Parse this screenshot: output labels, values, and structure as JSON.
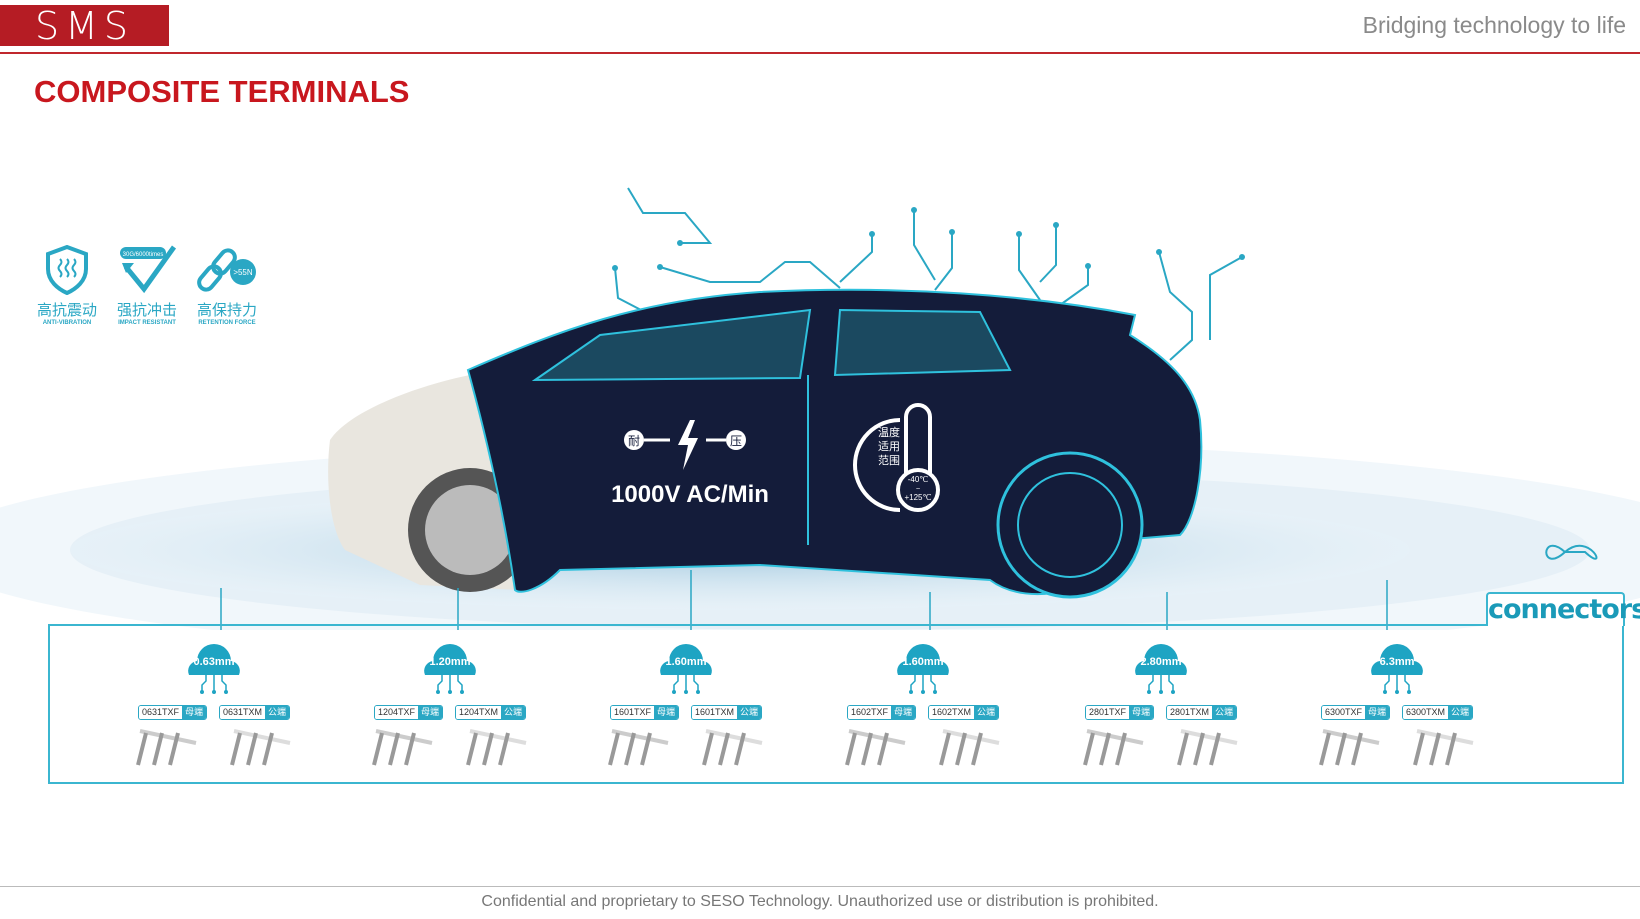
{
  "header": {
    "logo": "SMS",
    "tagline": "Bridging technology to life"
  },
  "title": "COMPOSITE TERMINALS",
  "features": [
    {
      "cn": "高抗震动",
      "en": "ANTI-VIBRATION",
      "icon": "shield-vibration-icon"
    },
    {
      "cn": "强抗冲击",
      "en": "IMPACT RESISTANT",
      "badge": "30G/6000times",
      "icon": "impact-check-icon"
    },
    {
      "cn": "高保持力",
      "en": "RETENTION FORCE",
      "badge": ">55N",
      "icon": "chain-link-icon"
    }
  ],
  "car": {
    "voltage_left": "耐",
    "voltage_right": "压",
    "voltage_text": "1000V AC/Min",
    "temp_lines": [
      "温度",
      "适用",
      "范围"
    ],
    "temp_low": "-40℃",
    "temp_sep": "~",
    "temp_high": "+125℃"
  },
  "connectors_label": "connectors",
  "accent": "#2aa7c4",
  "brand": "#c8171e",
  "groups": [
    {
      "size": "0.63mm",
      "f": "0631TXF",
      "m": "0631TXM"
    },
    {
      "size": "1.20mm",
      "f": "1204TXF",
      "m": "1204TXM"
    },
    {
      "size": "1.60mm",
      "f": "1601TXF",
      "m": "1601TXM"
    },
    {
      "size": "1.60mm",
      "f": "1602TXF",
      "m": "1602TXM"
    },
    {
      "size": "2.80mm",
      "f": "2801TXF",
      "m": "2801TXM"
    },
    {
      "size": "6.3mm",
      "f": "6300TXF",
      "m": "6300TXM"
    }
  ],
  "female_label": "母端",
  "male_label": "公端",
  "footer": "Confidential and proprietary to SESO Technology. Unauthorized use or distribution is prohibited."
}
